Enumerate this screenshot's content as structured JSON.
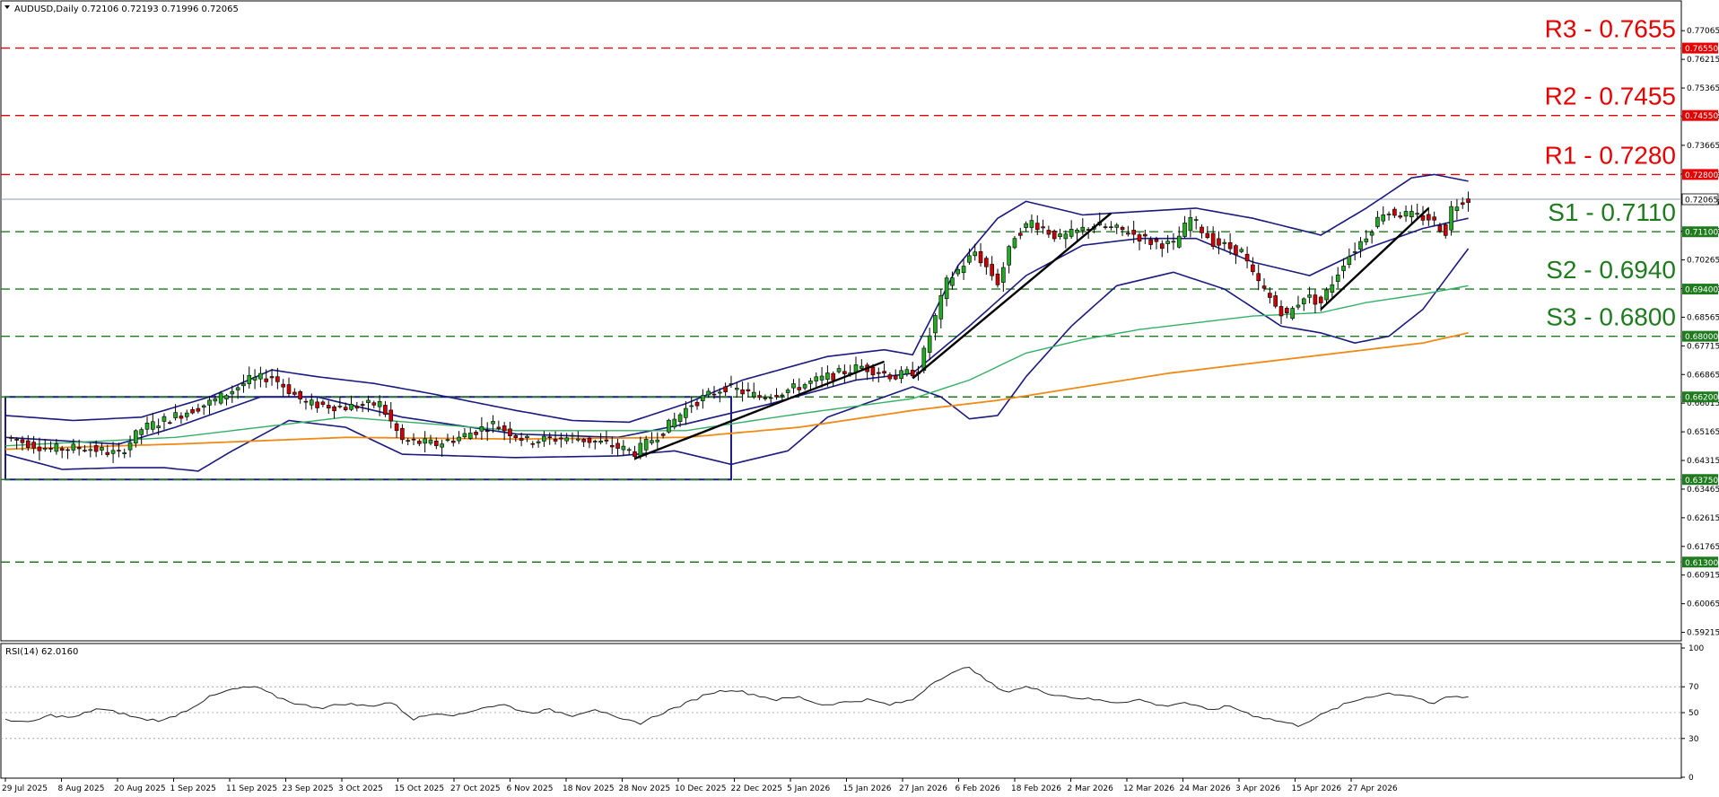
{
  "header": {
    "main": "AUDUSD,Daily  0.72106 0.72193 0.71996 0.72065",
    "rsi": "RSI(14) 62.0160"
  },
  "colors": {
    "bull": "#22aa22",
    "bear": "#cc0000",
    "bollinger": "#1a1a80",
    "ma_green": "#33b066",
    "ma_orange": "#f08a16",
    "resistance": "#e60000",
    "support": "#1e7b1e",
    "range_box": "#1a1a80",
    "trendline": "#000000",
    "price_line": "#8899bb"
  },
  "chart_data": [
    {
      "type": "candlestick",
      "symbol": "AUDUSD",
      "timeframe": "Daily",
      "last_price": "0.72065",
      "ylim": [
        0.5915,
        0.7771
      ],
      "y_ticks": [
        "0.77065",
        "0.76215",
        "0.75365",
        "0.74515",
        "0.73665",
        "0.72815",
        "0.71965",
        "0.71115",
        "0.70265",
        "0.69415",
        "0.68565",
        "0.67715",
        "0.66865",
        "0.66015",
        "0.65165",
        "0.64315",
        "0.63465",
        "0.62615",
        "0.61765",
        "0.60915",
        "0.60065",
        "0.59215"
      ],
      "x_ticks": [
        "29 Jul 2025",
        "8 Aug 2025",
        "20 Aug 2025",
        "1 Sep 2025",
        "11 Sep 2025",
        "23 Sep 2025",
        "3 Oct 2025",
        "15 Oct 2025",
        "27 Oct 2025",
        "6 Nov 2025",
        "18 Nov 2025",
        "28 Nov 2025",
        "10 Dec 2025",
        "22 Dec 2025",
        "5 Jan 2026",
        "15 Jan 2026",
        "27 Jan 2026",
        "6 Feb 2026",
        "18 Feb 2026",
        "2 Mar 2026",
        "12 Mar 2026",
        "24 Mar 2026",
        "3 Apr 2026",
        "15 Apr 2026",
        "27 Apr 2026"
      ],
      "levels": [
        {
          "label": "R3 - 0.7655",
          "tag": "0.76550",
          "value": 0.7655,
          "kind": "resistance"
        },
        {
          "label": "R2 - 0.7455",
          "tag": "0.74550",
          "value": 0.7455,
          "kind": "resistance"
        },
        {
          "label": "R1 - 0.7280",
          "tag": "0.72800",
          "value": 0.728,
          "kind": "resistance"
        },
        {
          "label": "S1 - 0.7110",
          "tag": "0.71100",
          "value": 0.711,
          "kind": "support"
        },
        {
          "label": "S2 - 0.6940",
          "tag": "0.69400",
          "value": 0.694,
          "kind": "support"
        },
        {
          "label": "S3 - 0.6800",
          "tag": "0.68000",
          "value": 0.68,
          "kind": "support"
        },
        {
          "label": "",
          "tag": "0.66200",
          "value": 0.662,
          "kind": "support"
        },
        {
          "label": "",
          "tag": "0.63750",
          "value": 0.6375,
          "kind": "support"
        },
        {
          "label": "",
          "tag": "0.61300",
          "value": 0.613,
          "kind": "support"
        }
      ],
      "range_box": {
        "top": 0.662,
        "bottom": 0.6375,
        "start_index": 0,
        "end_index": 128
      },
      "trendlines": [
        {
          "from": [
            111,
            0.6437
          ],
          "to": [
            155,
            0.6725
          ]
        },
        {
          "from": [
            160,
            0.6675
          ],
          "to": [
            195,
            0.7165
          ]
        },
        {
          "from": [
            232,
            0.688
          ],
          "to": [
            251,
            0.718
          ]
        }
      ],
      "close_path": [
        [
          0,
          0.65
        ],
        [
          8,
          0.6465
        ],
        [
          14,
          0.647
        ],
        [
          20,
          0.645
        ],
        [
          24,
          0.6525
        ],
        [
          31,
          0.657
        ],
        [
          37,
          0.661
        ],
        [
          43,
          0.667
        ],
        [
          47,
          0.668
        ],
        [
          53,
          0.66
        ],
        [
          60,
          0.659
        ],
        [
          66,
          0.66
        ],
        [
          70,
          0.649
        ],
        [
          76,
          0.648
        ],
        [
          80,
          0.65
        ],
        [
          86,
          0.654
        ],
        [
          92,
          0.649
        ],
        [
          100,
          0.65
        ],
        [
          106,
          0.648
        ],
        [
          111,
          0.6455
        ],
        [
          116,
          0.652
        ],
        [
          121,
          0.66
        ],
        [
          127,
          0.665
        ],
        [
          133,
          0.662
        ],
        [
          138,
          0.664
        ],
        [
          145,
          0.668
        ],
        [
          151,
          0.671
        ],
        [
          157,
          0.668
        ],
        [
          161,
          0.67
        ],
        [
          166,
          0.696
        ],
        [
          171,
          0.705
        ],
        [
          175,
          0.696
        ],
        [
          178,
          0.71
        ],
        [
          181,
          0.714
        ],
        [
          186,
          0.709
        ],
        [
          192,
          0.713
        ],
        [
          198,
          0.711
        ],
        [
          202,
          0.708
        ],
        [
          206,
          0.707
        ],
        [
          209,
          0.715
        ],
        [
          213,
          0.708
        ],
        [
          218,
          0.705
        ],
        [
          220,
          0.698
        ],
        [
          224,
          0.689
        ],
        [
          226,
          0.686
        ],
        [
          229,
          0.692
        ],
        [
          232,
          0.69
        ],
        [
          236,
          0.702
        ],
        [
          240,
          0.71
        ],
        [
          243,
          0.717
        ],
        [
          247,
          0.716
        ],
        [
          251,
          0.715
        ],
        [
          254,
          0.711
        ],
        [
          255,
          0.718
        ],
        [
          257,
          0.7206
        ]
      ],
      "series": [
        {
          "name": "",
          "kind": "bollinger_upper",
          "points": [
            [
              0,
              0.6565
            ],
            [
              12,
              0.655
            ],
            [
              24,
              0.656
            ],
            [
              36,
              0.662
            ],
            [
              47,
              0.67
            ],
            [
              55,
              0.668
            ],
            [
              65,
              0.666
            ],
            [
              75,
              0.663
            ],
            [
              90,
              0.658
            ],
            [
              100,
              0.655
            ],
            [
              110,
              0.6545
            ],
            [
              120,
              0.66
            ],
            [
              130,
              0.667
            ],
            [
              145,
              0.674
            ],
            [
              155,
              0.676
            ],
            [
              160,
              0.6745
            ],
            [
              168,
              0.701
            ],
            [
              175,
              0.715
            ],
            [
              180,
              0.72
            ],
            [
              190,
              0.716
            ],
            [
              200,
              0.717
            ],
            [
              210,
              0.718
            ],
            [
              220,
              0.715
            ],
            [
              232,
              0.71
            ],
            [
              240,
              0.718
            ],
            [
              248,
              0.727
            ],
            [
              252,
              0.728
            ],
            [
              258,
              0.726
            ]
          ]
        },
        {
          "name": "",
          "kind": "bollinger_mid",
          "points": [
            [
              0,
              0.65
            ],
            [
              20,
              0.648
            ],
            [
              30,
              0.653
            ],
            [
              45,
              0.662
            ],
            [
              55,
              0.662
            ],
            [
              70,
              0.656
            ],
            [
              90,
              0.651
            ],
            [
              108,
              0.65
            ],
            [
              120,
              0.654
            ],
            [
              135,
              0.66
            ],
            [
              150,
              0.667
            ],
            [
              160,
              0.669
            ],
            [
              170,
              0.683
            ],
            [
              180,
              0.698
            ],
            [
              190,
              0.707
            ],
            [
              200,
              0.709
            ],
            [
              210,
              0.709
            ],
            [
              220,
              0.702
            ],
            [
              230,
              0.698
            ],
            [
              240,
              0.706
            ],
            [
              250,
              0.712
            ],
            [
              258,
              0.715
            ]
          ]
        },
        {
          "name": "",
          "kind": "bollinger_lower",
          "points": [
            [
              0,
              0.645
            ],
            [
              10,
              0.6405
            ],
            [
              20,
              0.641
            ],
            [
              28,
              0.641
            ],
            [
              34,
              0.64
            ],
            [
              40,
              0.646
            ],
            [
              50,
              0.655
            ],
            [
              60,
              0.653
            ],
            [
              70,
              0.645
            ],
            [
              90,
              0.644
            ],
            [
              108,
              0.6445
            ],
            [
              118,
              0.646
            ],
            [
              128,
              0.642
            ],
            [
              138,
              0.646
            ],
            [
              145,
              0.656
            ],
            [
              155,
              0.662
            ],
            [
              160,
              0.665
            ],
            [
              165,
              0.662
            ],
            [
              170,
              0.6555
            ],
            [
              175,
              0.6565
            ],
            [
              180,
              0.668
            ],
            [
              188,
              0.683
            ],
            [
              196,
              0.695
            ],
            [
              206,
              0.699
            ],
            [
              215,
              0.694
            ],
            [
              225,
              0.683
            ],
            [
              232,
              0.681
            ],
            [
              238,
              0.678
            ],
            [
              244,
              0.68
            ],
            [
              250,
              0.688
            ],
            [
              258,
              0.706
            ]
          ]
        },
        {
          "name": "",
          "kind": "ma_green",
          "points": [
            [
              0,
              0.6475
            ],
            [
              30,
              0.65
            ],
            [
              60,
              0.656
            ],
            [
              90,
              0.652
            ],
            [
              120,
              0.652
            ],
            [
              140,
              0.657
            ],
            [
              160,
              0.6615
            ],
            [
              170,
              0.667
            ],
            [
              180,
              0.675
            ],
            [
              190,
              0.679
            ],
            [
              200,
              0.682
            ],
            [
              210,
              0.684
            ],
            [
              220,
              0.686
            ],
            [
              232,
              0.687
            ],
            [
              240,
              0.69
            ],
            [
              250,
              0.6925
            ],
            [
              258,
              0.695
            ]
          ]
        },
        {
          "name": "",
          "kind": "ma_orange",
          "points": [
            [
              0,
              0.6465
            ],
            [
              30,
              0.648
            ],
            [
              60,
              0.65
            ],
            [
              90,
              0.6495
            ],
            [
              120,
              0.65
            ],
            [
              140,
              0.653
            ],
            [
              160,
              0.658
            ],
            [
              175,
              0.661
            ],
            [
              190,
              0.665
            ],
            [
              205,
              0.669
            ],
            [
              220,
              0.672
            ],
            [
              235,
              0.675
            ],
            [
              250,
              0.678
            ],
            [
              258,
              0.681
            ]
          ]
        }
      ]
    },
    {
      "type": "line",
      "title": "RSI(14) 62.0160",
      "ylim": [
        0,
        100
      ],
      "y_ticks": [
        "100",
        "70",
        "50",
        "30",
        "0"
      ],
      "levels": [
        70,
        50,
        30
      ],
      "points": [
        [
          0,
          45
        ],
        [
          4,
          42
        ],
        [
          8,
          48
        ],
        [
          12,
          46
        ],
        [
          16,
          53
        ],
        [
          20,
          50
        ],
        [
          24,
          45
        ],
        [
          28,
          44
        ],
        [
          32,
          52
        ],
        [
          36,
          62
        ],
        [
          40,
          68
        ],
        [
          44,
          70
        ],
        [
          48,
          62
        ],
        [
          52,
          56
        ],
        [
          56,
          54
        ],
        [
          60,
          57
        ],
        [
          64,
          55
        ],
        [
          68,
          58
        ],
        [
          72,
          45
        ],
        [
          76,
          50
        ],
        [
          80,
          48
        ],
        [
          84,
          54
        ],
        [
          88,
          56
        ],
        [
          92,
          50
        ],
        [
          96,
          52
        ],
        [
          100,
          48
        ],
        [
          104,
          53
        ],
        [
          108,
          45
        ],
        [
          112,
          42
        ],
        [
          116,
          50
        ],
        [
          120,
          57
        ],
        [
          124,
          65
        ],
        [
          128,
          68
        ],
        [
          132,
          64
        ],
        [
          136,
          60
        ],
        [
          140,
          62
        ],
        [
          144,
          56
        ],
        [
          148,
          58
        ],
        [
          152,
          60
        ],
        [
          156,
          56
        ],
        [
          160,
          60
        ],
        [
          164,
          75
        ],
        [
          168,
          82
        ],
        [
          170,
          86
        ],
        [
          172,
          78
        ],
        [
          176,
          66
        ],
        [
          180,
          70
        ],
        [
          184,
          65
        ],
        [
          188,
          62
        ],
        [
          192,
          60
        ],
        [
          196,
          58
        ],
        [
          200,
          60
        ],
        [
          204,
          55
        ],
        [
          208,
          58
        ],
        [
          212,
          52
        ],
        [
          216,
          55
        ],
        [
          220,
          48
        ],
        [
          224,
          44
        ],
        [
          228,
          40
        ],
        [
          232,
          48
        ],
        [
          236,
          56
        ],
        [
          240,
          62
        ],
        [
          244,
          65
        ],
        [
          248,
          63
        ],
        [
          250,
          60
        ],
        [
          252,
          56
        ],
        [
          254,
          62
        ],
        [
          258,
          62
        ]
      ]
    }
  ]
}
